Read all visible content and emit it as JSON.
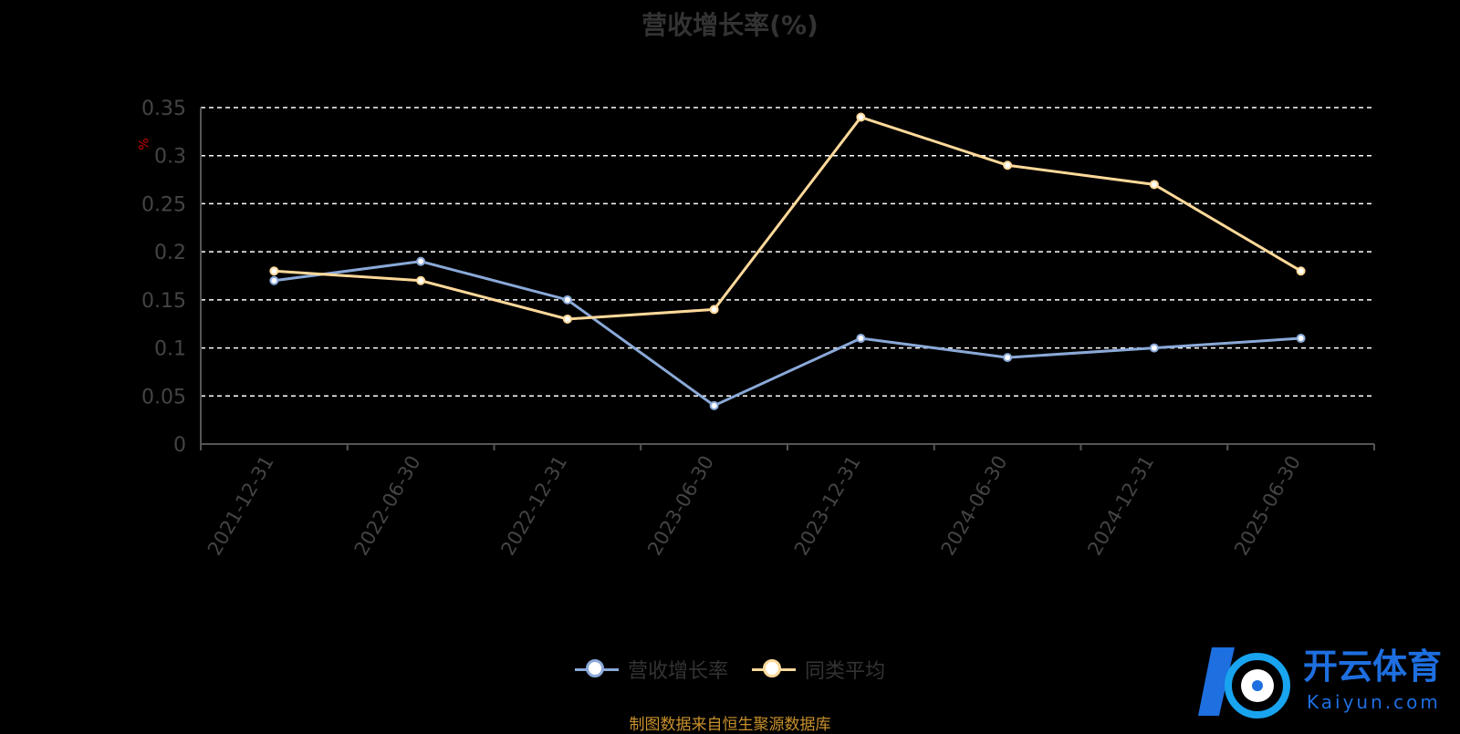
{
  "title": "营收增长率(%)",
  "y_unit": "%",
  "source": "制图数据来自恒生聚源数据库",
  "watermark": {
    "text": "开云体育",
    "sub": "Kaiyun.com"
  },
  "colors": {
    "background": "#000000",
    "series_1": "#8aa9d8",
    "series_2": "#ffd99a",
    "grid": "#ffffff",
    "axis": "#555555",
    "tick_text": "#444444",
    "unit": "#cc0000",
    "source": "#c8912c"
  },
  "chart_data": {
    "type": "line",
    "title": "营收增长率(%)",
    "ylabel": "%",
    "xlabel": "",
    "x": [
      "2021-12-31",
      "2022-06-30",
      "2022-12-31",
      "2023-06-30",
      "2023-12-31",
      "2024-06-30",
      "2024-12-31",
      "2025-06-30"
    ],
    "series": [
      {
        "name": "营收增长率",
        "values": [
          0.17,
          0.19,
          0.15,
          0.04,
          0.11,
          0.09,
          0.1,
          0.11
        ]
      },
      {
        "name": "同类平均",
        "values": [
          0.18,
          0.17,
          0.13,
          0.14,
          0.34,
          0.29,
          0.27,
          0.18
        ]
      }
    ],
    "ylim": [
      0,
      0.35
    ],
    "yticks": [
      "0",
      "0.05",
      "0.1",
      "0.15",
      "0.2",
      "0.25",
      "0.3",
      "0.35"
    ],
    "grid": true,
    "legend_position": "bottom-center"
  }
}
